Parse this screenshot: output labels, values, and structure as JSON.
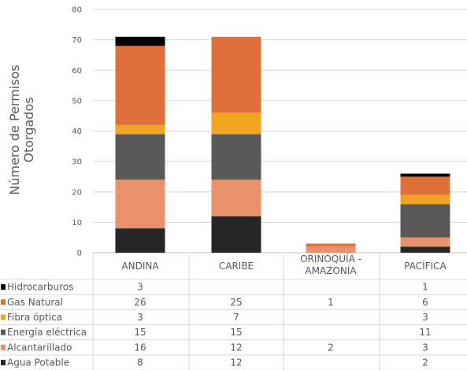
{
  "chart_data": {
    "type": "stacked-bar",
    "ylabel": "Número de Permisos Otorgados",
    "ylim": [
      0,
      80
    ],
    "yticks": [
      0,
      10,
      20,
      30,
      40,
      50,
      60,
      70,
      80
    ],
    "categories": [
      "ANDINA",
      "CARIBE",
      "ORINOQUÍA - AMAZONÍA",
      "PACÍFICA"
    ],
    "series": [
      {
        "name": "Agua Potable",
        "color": "#262626",
        "values": [
          8,
          12,
          0,
          2
        ],
        "labels": [
          "8",
          "12",
          "",
          "2"
        ]
      },
      {
        "name": "Alcantarillado",
        "color": "#e8916a",
        "values": [
          16,
          12,
          2,
          3
        ],
        "labels": [
          "16",
          "12",
          "2",
          "3"
        ]
      },
      {
        "name": "Energía eléctrica",
        "color": "#595959",
        "values": [
          15,
          15,
          0,
          11
        ],
        "labels": [
          "15",
          "15",
          "",
          "11"
        ]
      },
      {
        "name": "Fibra óptica",
        "color": "#f0a520",
        "values": [
          3,
          7,
          0,
          3
        ],
        "labels": [
          "3",
          "7",
          "",
          "3"
        ]
      },
      {
        "name": "Gas Natural",
        "color": "#e0703a",
        "values": [
          26,
          25,
          1,
          6
        ],
        "labels": [
          "26",
          "25",
          "1",
          "6"
        ]
      },
      {
        "name": "Hidrocarburos",
        "color": "#000000",
        "values": [
          3,
          0,
          0,
          1
        ],
        "labels": [
          "3",
          "",
          "",
          "1"
        ]
      }
    ],
    "table_row_order": [
      "Hidrocarburos",
      "Gas Natural",
      "Fibra óptica",
      "Energía eléctrica",
      "Alcantarillado",
      "Agua Potable"
    ],
    "grid": true
  }
}
